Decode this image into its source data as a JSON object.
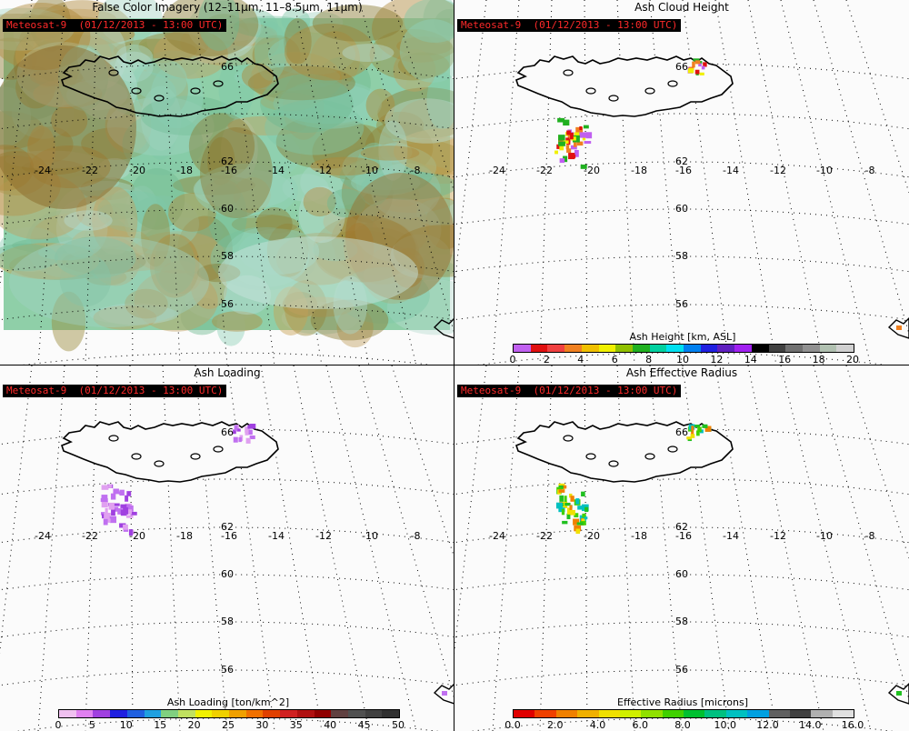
{
  "panels": [
    {
      "title": "False Color Imagery (12–11μm, 11–8.5μm, 11μm)",
      "sat_label": "Meteosat-9  (01/12/2013 - 13:00 UTC)",
      "fill": "imagery"
    },
    {
      "title": "Ash Cloud Height",
      "sat_label": "Meteosat-9  (01/12/2013 - 13:00 UTC)",
      "fill": "height"
    },
    {
      "title": "Ash Loading",
      "sat_label": "Meteosat-9  (01/12/2013 - 13:00 UTC)",
      "fill": "loading"
    },
    {
      "title": "Ash Effective Radius",
      "sat_label": "Meteosat-9  (01/12/2013 - 13:00 UTC)",
      "fill": "radius"
    }
  ],
  "map": {
    "lon_labels": [
      "-24",
      "-22",
      "-20",
      "-18",
      "-16",
      "-14",
      "-12",
      "-10",
      "-8"
    ],
    "lat_labels": [
      "62",
      "60",
      "58",
      "56"
    ],
    "top_lat_label": "66"
  },
  "colorbars": {
    "height": {
      "title": "Ash Height [km, ASL]",
      "ticks": [
        "0",
        "2",
        "4",
        "6",
        "8",
        "10",
        "12",
        "14",
        "16",
        "18",
        "20"
      ],
      "colors": [
        "#c060f0",
        "#e01010",
        "#f04040",
        "#f08020",
        "#f0c000",
        "#f0f000",
        "#90c000",
        "#20b020",
        "#00d0a0",
        "#00e0f0",
        "#0080f0",
        "#2020e0",
        "#6020c0",
        "#a020f0",
        "#000000",
        "#404040",
        "#707070",
        "#909090",
        "#b0c0b0",
        "#d0d0d0"
      ]
    },
    "loading": {
      "title": "Ash Loading [ton/km^2]",
      "ticks": [
        "0",
        "5",
        "10",
        "15",
        "20",
        "25",
        "30",
        "35",
        "40",
        "45",
        "50"
      ],
      "colors": [
        "#f0c0f0",
        "#e080f0",
        "#a040e0",
        "#2020e0",
        "#2060e0",
        "#20a0e0",
        "#80d080",
        "#c0e060",
        "#f0f000",
        "#f0d000",
        "#f0a000",
        "#f07000",
        "#e04000",
        "#d02020",
        "#b01010",
        "#900000",
        "#604040",
        "#505050",
        "#404040",
        "#303030"
      ]
    },
    "radius": {
      "title": "Effective Radius [microns]",
      "ticks": [
        "0.0",
        "2.0",
        "4.0",
        "6.0",
        "8.0",
        "10.0",
        "12.0",
        "14.0",
        "16.0"
      ],
      "colors": [
        "#e00000",
        "#f04000",
        "#f08000",
        "#f0b000",
        "#f0e000",
        "#d0f000",
        "#90e000",
        "#40d000",
        "#00c030",
        "#00c080",
        "#00c0c0",
        "#00a0e0",
        "#606060",
        "#404040",
        "#b0b0b0",
        "#e0e0e0"
      ]
    }
  }
}
